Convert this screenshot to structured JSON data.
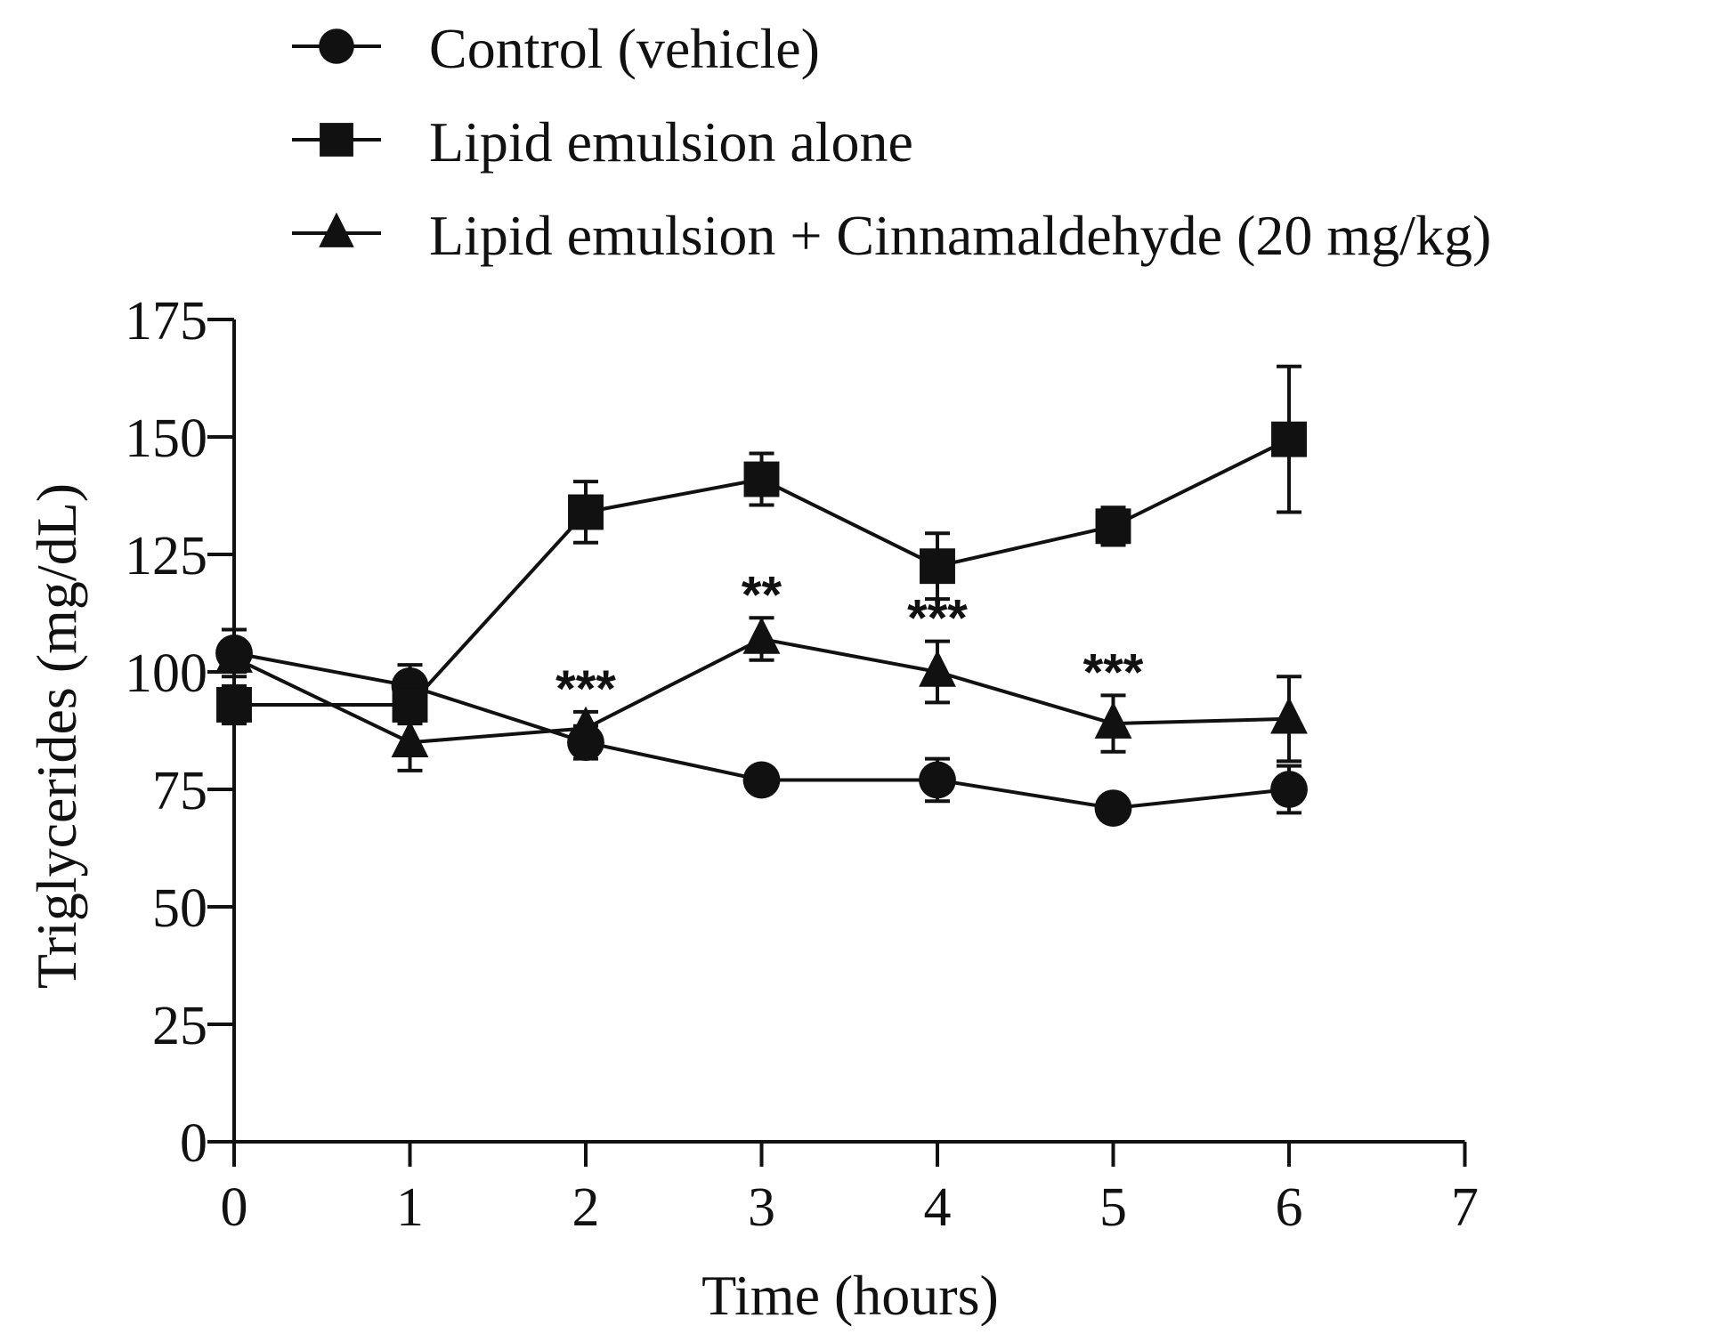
{
  "chart_data": {
    "type": "line",
    "title": "",
    "xlabel": "Time (hours)",
    "ylabel": "Triglycerides (mg/dL)",
    "xlim": [
      0,
      7
    ],
    "ylim": [
      0,
      175
    ],
    "x_ticks": [
      "0",
      "1",
      "2",
      "3",
      "4",
      "5",
      "6",
      "7"
    ],
    "y_ticks": [
      "0",
      "25",
      "50",
      "75",
      "100",
      "125",
      "150",
      "175"
    ],
    "grid": false,
    "legend_position": "top",
    "x": [
      0,
      1,
      2,
      3,
      4,
      5,
      6
    ],
    "series": [
      {
        "name": "Control (vehicle)",
        "marker": "circle",
        "values": [
          104,
          97,
          85,
          77,
          77,
          71,
          75
        ],
        "errors": [
          5,
          4.5,
          3.5,
          2,
          4.5,
          2,
          5
        ]
      },
      {
        "name": "Lipid emulsion alone",
        "marker": "square",
        "values": [
          93,
          93,
          134,
          141,
          122.5,
          131,
          149.5
        ],
        "errors": [
          4,
          4,
          6.5,
          5.5,
          7,
          4,
          15.5
        ]
      },
      {
        "name": "Lipid emulsion + Cinnamaldehyde (20 mg/kg)",
        "marker": "triangle",
        "values": [
          103,
          85,
          88,
          107,
          100,
          89,
          90
        ],
        "errors": [
          3,
          6,
          3.5,
          4.5,
          6.5,
          6,
          9
        ]
      }
    ],
    "annotations": [
      {
        "x": 2,
        "text": "***"
      },
      {
        "x": 3,
        "text": "**"
      },
      {
        "x": 4,
        "text": "***"
      },
      {
        "x": 5,
        "text": "***"
      }
    ]
  }
}
